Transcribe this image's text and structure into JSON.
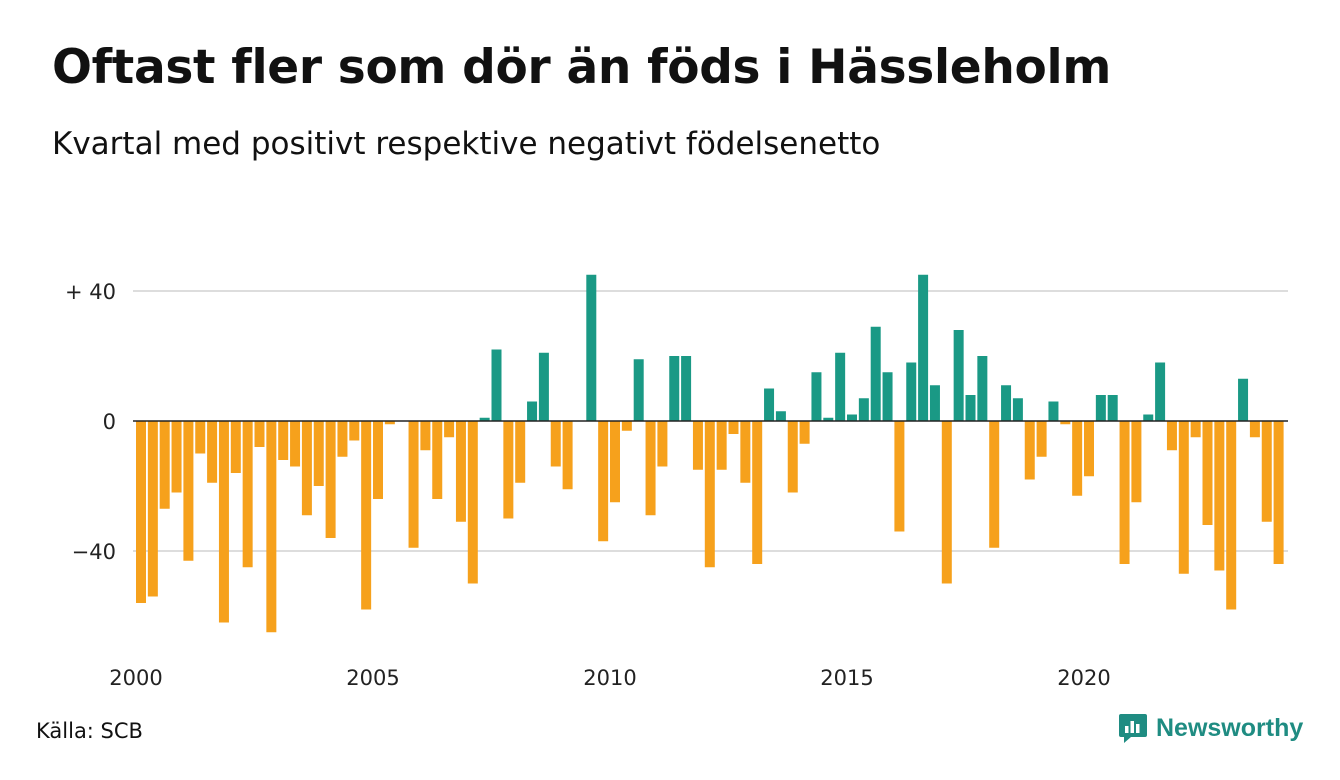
{
  "title": "Oftast fler som dör än föds i Hässleholm",
  "subtitle": "Kvartal med positivt respektive negativt födelsenetto",
  "source": "Källa: SCB",
  "brand": {
    "name": "Newsworthy",
    "icon": "newsworthy-logo-icon"
  },
  "colors": {
    "positive": "#1a9985",
    "negative": "#f6a11c",
    "grid": "#dddddd",
    "zero": "#222222"
  },
  "chart_data": {
    "type": "bar",
    "title": "Oftast fler som dör än föds i Hässleholm",
    "subtitle": "Kvartal med positivt respektive negativt födelsenetto",
    "xlabel": "",
    "ylabel": "",
    "ylim": [
      -65,
      45
    ],
    "grid": true,
    "y_ticks": [
      40,
      0,
      -40
    ],
    "y_tick_labels": [
      "+ 40",
      "0",
      "−40"
    ],
    "x_tick_years": [
      2000,
      2005,
      2010,
      2015,
      2020
    ],
    "x_tick_labels": [
      "2000",
      "2005",
      "2010",
      "2015",
      "2020"
    ],
    "start_year": 2000,
    "periods_per_year": 4,
    "values": [
      -56,
      -54,
      -27,
      -22,
      -43,
      -10,
      -19,
      -62,
      -16,
      -45,
      -8,
      -65,
      -12,
      -14,
      -29,
      -20,
      -36,
      -11,
      -6,
      -58,
      -24,
      -1,
      0,
      -39,
      -9,
      -24,
      -5,
      -31,
      -50,
      1,
      22,
      -30,
      -19,
      6,
      21,
      -14,
      -21,
      0,
      45,
      -37,
      -25,
      -3,
      19,
      -29,
      -14,
      20,
      20,
      -15,
      -45,
      -15,
      -4,
      -19,
      -44,
      10,
      3,
      -22,
      -7,
      15,
      1,
      21,
      2,
      7,
      29,
      15,
      -34,
      18,
      45,
      11,
      -50,
      28,
      8,
      20,
      -39,
      11,
      7,
      -18,
      -11,
      6,
      -1,
      -23,
      -17,
      8,
      8,
      -44,
      -25,
      2,
      18,
      -9,
      -47,
      -5,
      -32,
      -46,
      -58,
      13,
      -5,
      -31,
      -44
    ]
  }
}
